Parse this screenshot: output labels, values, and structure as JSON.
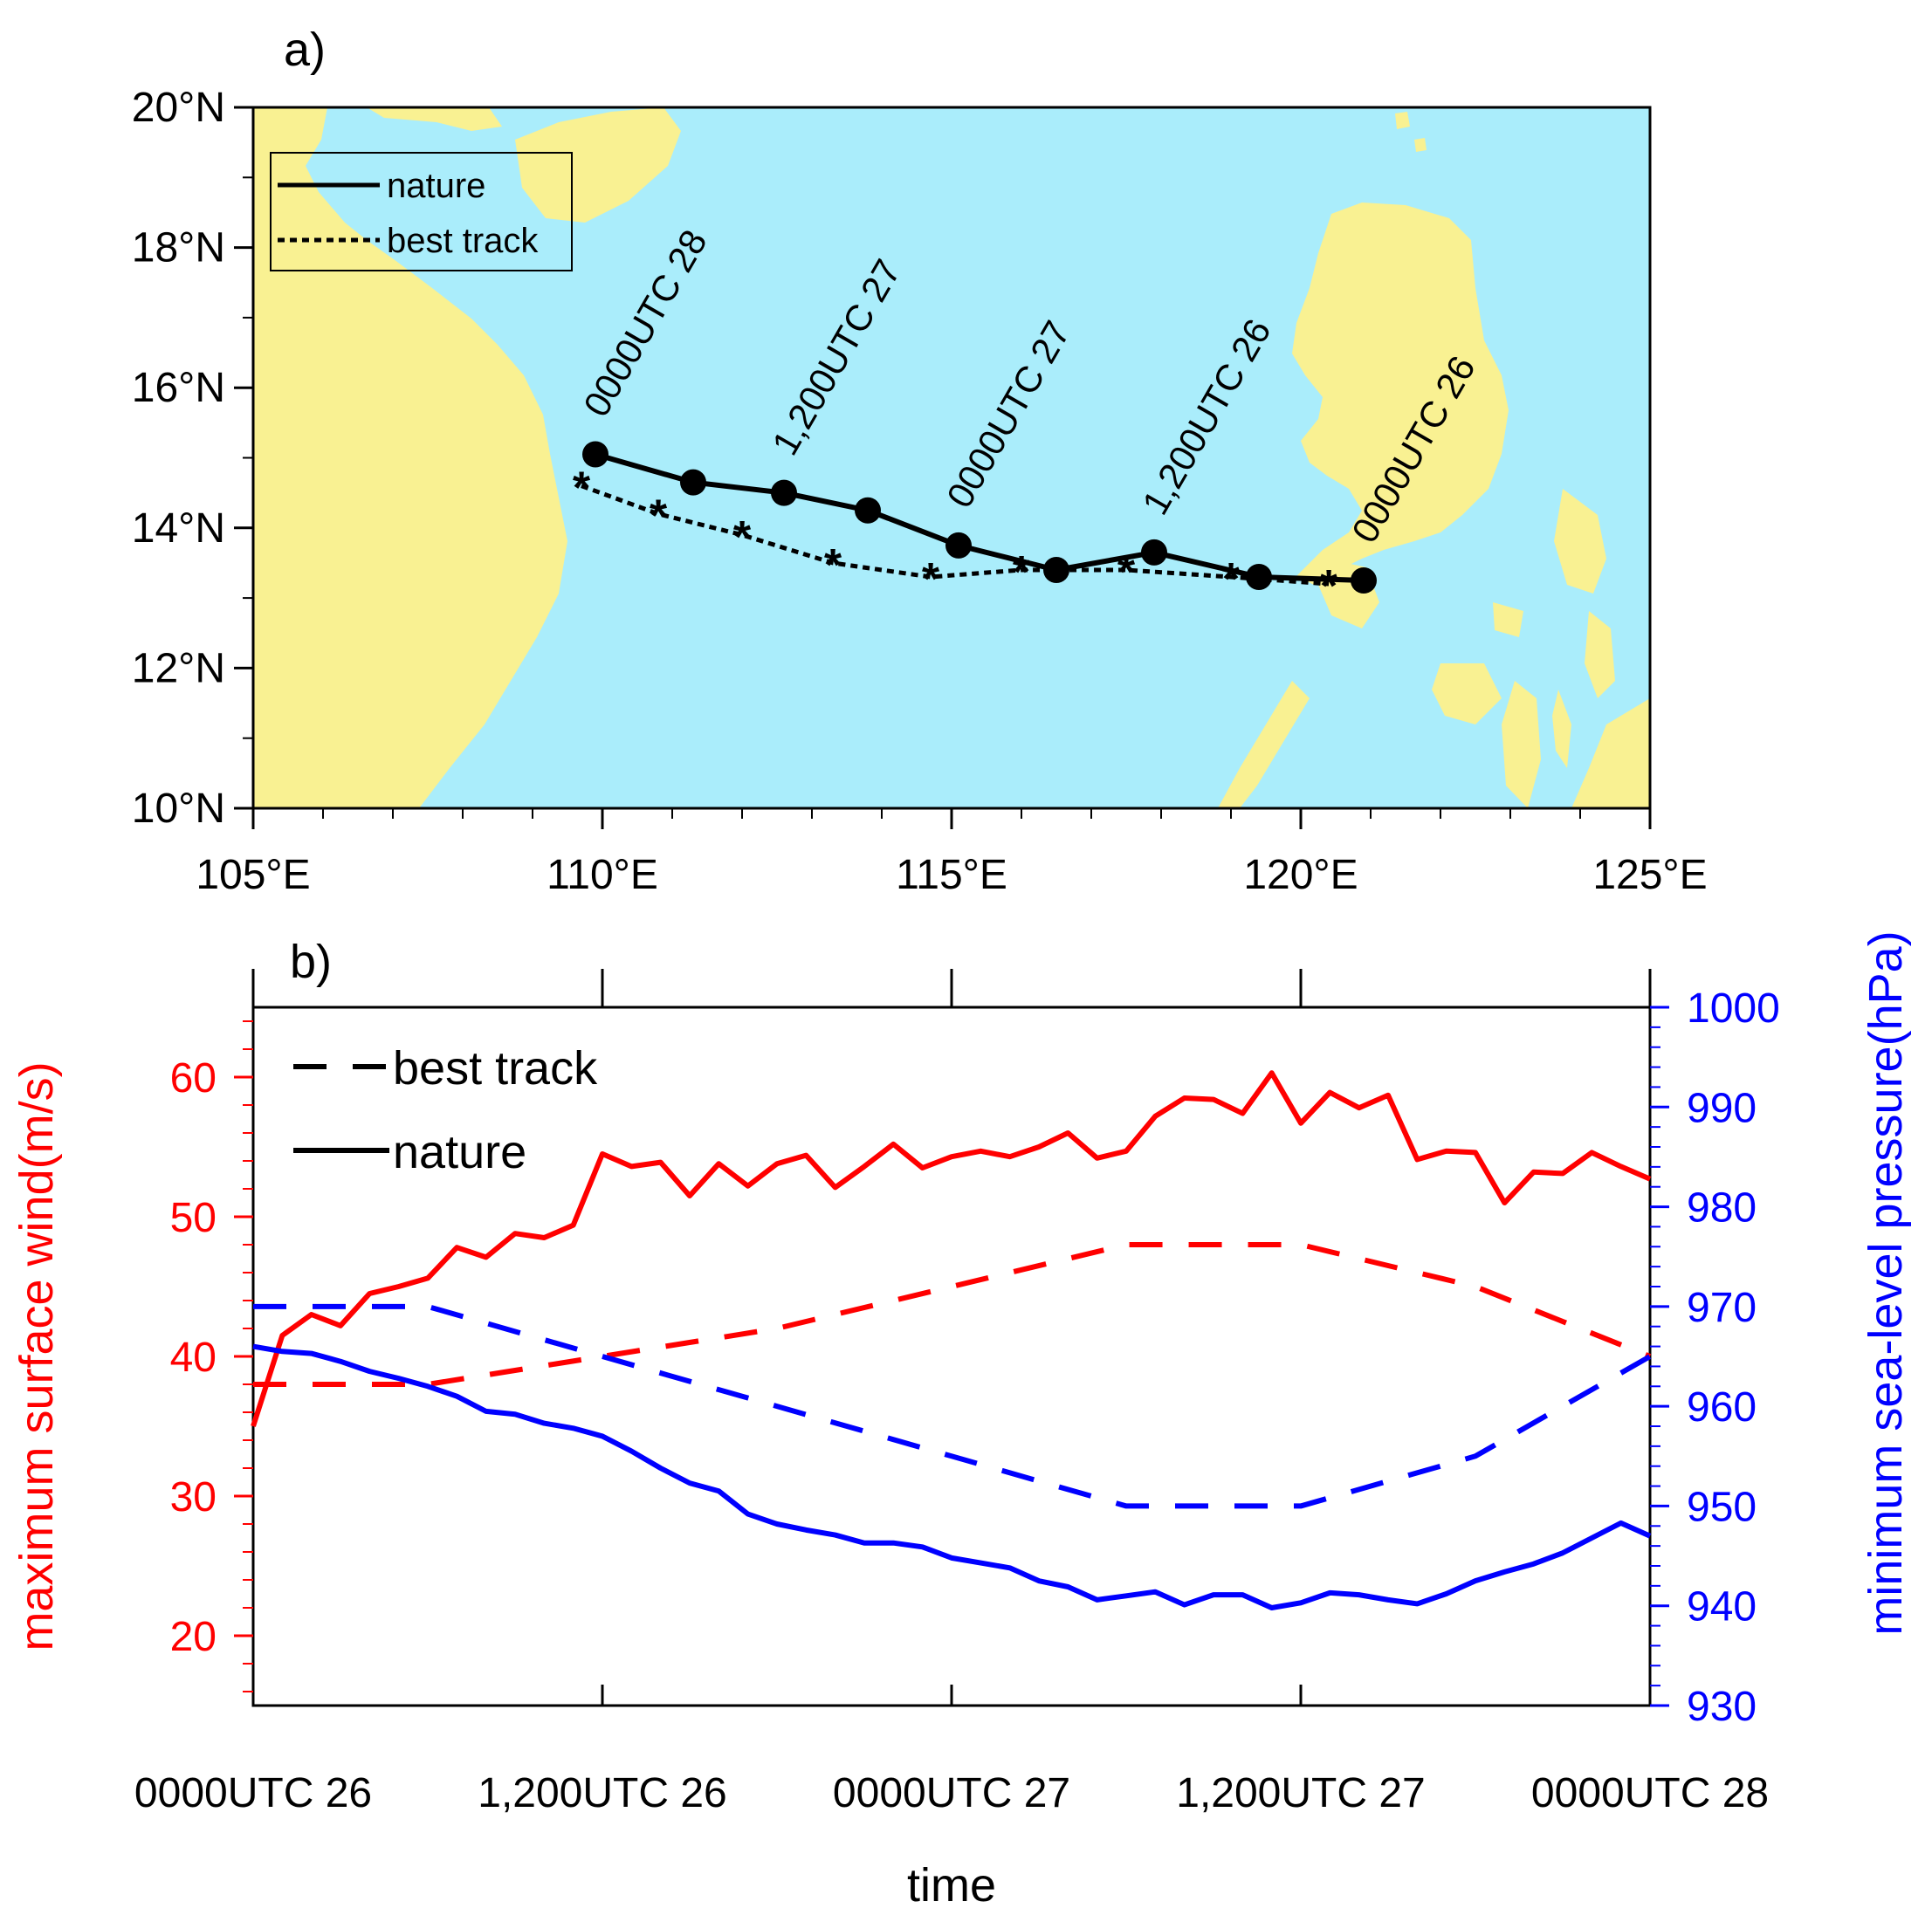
{
  "panel_a": {
    "label": "a)",
    "y_ticks": [
      "20°N",
      "18°N",
      "16°N",
      "14°N",
      "12°N",
      "10°N"
    ],
    "x_ticks": [
      "105°E",
      "110°E",
      "115°E",
      "120°E",
      "125°E"
    ],
    "legend": {
      "nature": "nature",
      "best_track": "best track"
    },
    "annotations": [
      "0000UTC 28",
      "1,200UTC 27",
      "0000UTC 27",
      "1,200UTC 26",
      "0000UTC 26"
    ],
    "colors": {
      "ocean": "#aaedfb",
      "land": "#f9f192"
    }
  },
  "panel_b": {
    "label": "b)",
    "xlabel": "time",
    "ylabel_left": "maximum surface wind(m/s)",
    "ylabel_right": "minimum sea-level pressure(hPa)",
    "x_ticks": [
      "0000UTC 26",
      "1,200UTC 26",
      "0000UTC 27",
      "1,200UTC 27",
      "0000UTC 28"
    ],
    "y_ticks_left": [
      "60",
      "50",
      "40",
      "30",
      "20"
    ],
    "y_ticks_right": [
      "1000",
      "990",
      "980",
      "970",
      "960",
      "950",
      "940",
      "930"
    ],
    "legend": {
      "best_track": "best track",
      "nature": "nature"
    },
    "colors": {
      "wind": "#ff0000",
      "pressure": "#0000ff"
    }
  },
  "chart_data": [
    {
      "type": "line",
      "title": "",
      "xlabel": "",
      "ylabel": "",
      "xlim": [
        105,
        125
      ],
      "ylim": [
        10,
        20
      ],
      "series": [
        {
          "name": "nature",
          "x": [
            109.9,
            111.3,
            112.6,
            113.8,
            115.1,
            116.5,
            117.9,
            119.4,
            120.9
          ],
          "y": [
            15.05,
            14.65,
            14.5,
            14.25,
            13.75,
            13.4,
            13.65,
            13.3,
            13.25
          ]
        },
        {
          "name": "best track",
          "x": [
            109.7,
            110.8,
            112.0,
            113.3,
            114.7,
            116.0,
            117.5,
            119.0,
            120.4
          ],
          "y": [
            14.6,
            14.2,
            13.9,
            13.5,
            13.3,
            13.4,
            13.4,
            13.3,
            13.2
          ]
        }
      ],
      "annotation_points": [
        {
          "text": "0000UTC 28",
          "x": 109.9,
          "y": 15.05
        },
        {
          "text": "1,200UTC 27",
          "x": 112.6,
          "y": 14.5
        },
        {
          "text": "0000UTC 27",
          "x": 115.1,
          "y": 13.75
        },
        {
          "text": "1,200UTC 26",
          "x": 117.9,
          "y": 13.65
        },
        {
          "text": "0000UTC 26",
          "x": 120.9,
          "y": 13.25
        }
      ]
    },
    {
      "type": "line",
      "title": "",
      "xlabel": "time",
      "ylabel": "maximum surface wind(m/s)",
      "y2label": "minimum sea-level pressure(hPa)",
      "x_categories": [
        "0000UTC 26",
        "1,200UTC 26",
        "0000UTC 27",
        "1,200UTC 27",
        "0000UTC 28"
      ],
      "xlim_hours": [
        0,
        48
      ],
      "ylim": [
        15,
        65
      ],
      "y2lim": [
        930,
        1000
      ],
      "series": [
        {
          "name": "nature",
          "axis": "left",
          "x": [
            0,
            1,
            2,
            3,
            4,
            5,
            6,
            7,
            8,
            9,
            10,
            11,
            12,
            13,
            14,
            15,
            16,
            17,
            18,
            19,
            20,
            21,
            22,
            23,
            24,
            25,
            26,
            27,
            28,
            29,
            30,
            31,
            32,
            33,
            34,
            35,
            36,
            37,
            38,
            39,
            40,
            41,
            42,
            43,
            44,
            45,
            46,
            47,
            48
          ],
          "y": [
            35,
            41.5,
            43,
            42.2,
            44.5,
            45,
            45.6,
            47.8,
            47.1,
            48.8,
            48.5,
            49.4,
            54.5,
            53.6,
            53.9,
            51.5,
            53.8,
            52.2,
            53.8,
            54.4,
            52.1,
            53.6,
            55.2,
            53.5,
            54.3,
            54.7,
            54.3,
            55,
            56,
            54.2,
            54.7,
            57.2,
            58.5,
            58.4,
            57.4,
            60.3,
            56.7,
            58.9,
            57.8,
            58.7,
            54.1,
            54.7,
            54.6,
            51,
            53.2,
            53.1,
            54.6,
            53.6,
            52.7
          ]
        },
        {
          "name": "best track",
          "axis": "left",
          "x": [
            0,
            6,
            12,
            18,
            24,
            30,
            36,
            42,
            48
          ],
          "y": [
            38,
            38,
            40,
            42,
            45,
            48,
            48,
            45,
            40
          ]
        },
        {
          "name": "nature",
          "axis": "right",
          "x": [
            0,
            1,
            2,
            3,
            4,
            5,
            6,
            7,
            8,
            9,
            10,
            11,
            12,
            13,
            14,
            15,
            16,
            17,
            18,
            19,
            20,
            21,
            22,
            23,
            24,
            25,
            26,
            27,
            28,
            29,
            30,
            31,
            32,
            33,
            34,
            35,
            36,
            37,
            38,
            39,
            40,
            41,
            42,
            43,
            44,
            45,
            46,
            47,
            48
          ],
          "y": [
            966,
            965.5,
            965.3,
            964.5,
            963.5,
            962.8,
            962,
            961,
            959.5,
            959.2,
            958.3,
            957.8,
            957,
            955.5,
            953.8,
            952.3,
            951.5,
            949.2,
            948.2,
            947.6,
            947.1,
            946.3,
            946.3,
            945.9,
            944.8,
            944.3,
            943.8,
            942.5,
            941.9,
            940.6,
            941,
            941.4,
            940.1,
            941.1,
            941.1,
            939.8,
            940.3,
            941.3,
            941.1,
            940.6,
            940.2,
            941.2,
            942.5,
            943.4,
            944.2,
            945.3,
            946.8,
            948.3,
            947
          ]
        },
        {
          "name": "best track",
          "axis": "right",
          "x": [
            0,
            6,
            12,
            18,
            24,
            30,
            36,
            42,
            48
          ],
          "y": [
            970,
            970,
            965,
            960,
            955,
            950,
            950,
            955,
            965
          ]
        }
      ]
    }
  ]
}
